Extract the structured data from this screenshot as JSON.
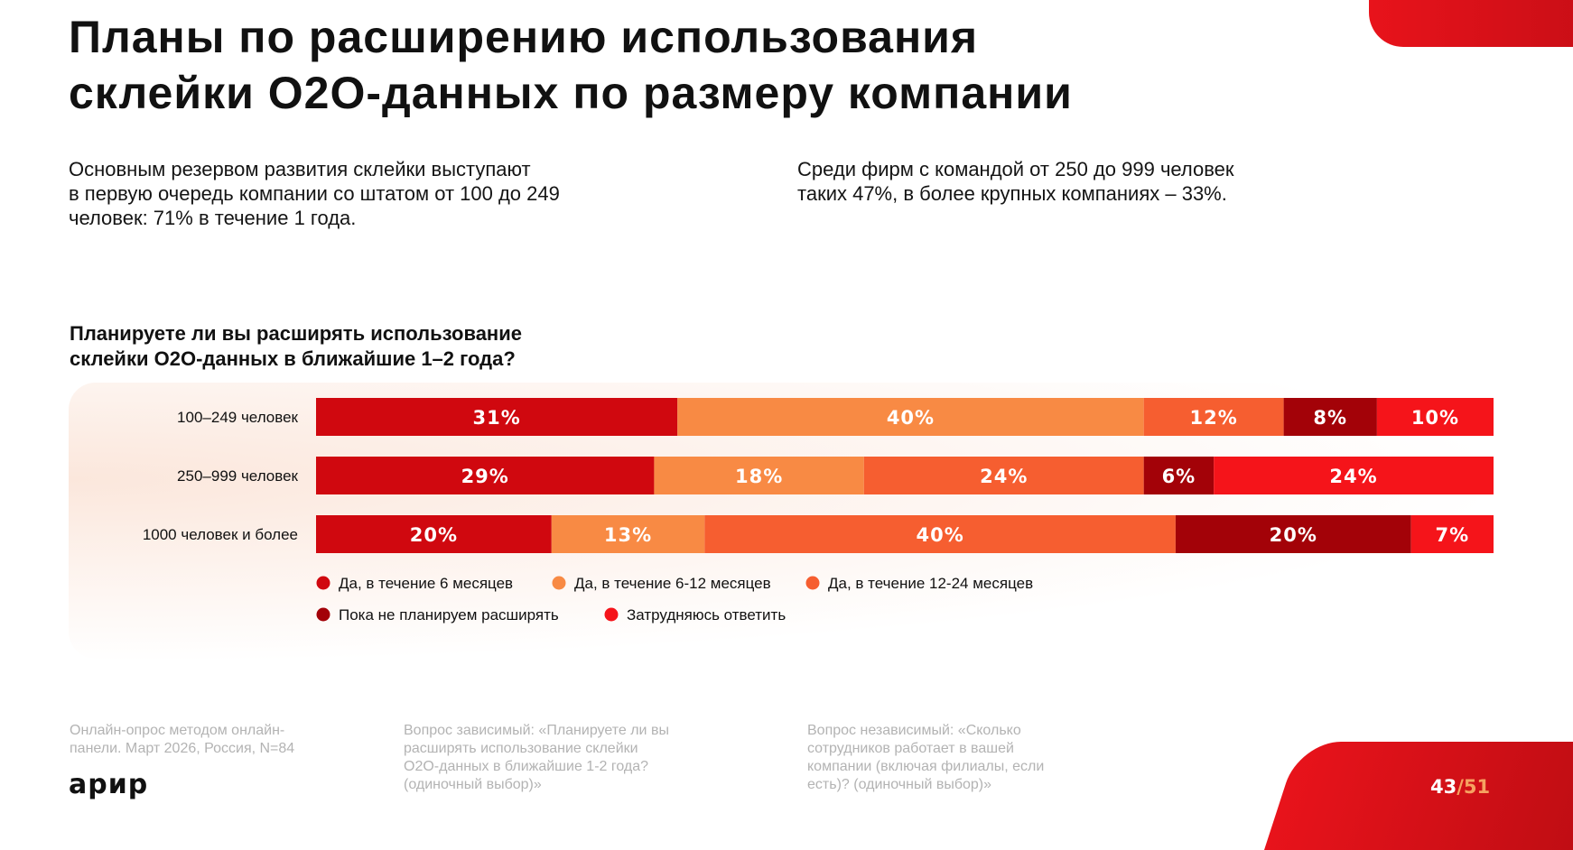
{
  "title_lines": [
    "Планы по расширению использования",
    "склейки O2O-данных по размеру компании"
  ],
  "lead_left_lines": [
    "Основным резервом развития склейки выступают",
    "в первую очередь компании со штатом от 100 до 249",
    "человек: 71% в течение 1 года."
  ],
  "lead_right_lines": [
    "Среди фирм с командой от 250 до 999 человек",
    "таких 47%, в более крупных компаниях – 33%."
  ],
  "colors": {
    "accent": "#e8131b",
    "dark_red": "#c20d15",
    "soft_bg": "#fdf2ec",
    "page_total": "#f6a261"
  },
  "chart_data": {
    "type": "bar",
    "orientation": "horizontal",
    "stacked": true,
    "normalized_percent": true,
    "title_lines": [
      "Планируете ли вы расширять использование",
      "склейки O2O-данных в ближайшие 1–2 года?"
    ],
    "categories": [
      "100–249 человек",
      "250–999 человек",
      "1000 человек и более"
    ],
    "series": [
      {
        "name": "Да, в течение 6 месяцев",
        "color": "#d0080f",
        "values": [
          31,
          29,
          20
        ]
      },
      {
        "name": "Да, в течение 6-12 месяцев",
        "color": "#f88a44",
        "values": [
          40,
          18,
          13
        ]
      },
      {
        "name": "Да, в течение 12-24 месяцев",
        "color": "#f65e30",
        "values": [
          12,
          24,
          40
        ]
      },
      {
        "name": "Пока не планируем расширять",
        "color": "#a30208",
        "values": [
          8,
          6,
          20
        ]
      },
      {
        "name": "Затрудняюсь ответить",
        "color": "#f5141a",
        "values": [
          10,
          24,
          7
        ]
      }
    ],
    "value_suffix": "%",
    "legend_position": "bottom-left"
  },
  "footnotes": {
    "method_lines": [
      "Онлайн-опрос методом онлайн-",
      "панели. Март 2026, Россия, N=84"
    ],
    "dependent_lines": [
      "Вопрос зависимый: «Планируете ли вы",
      "расширять использование склейки",
      "O2O-данных в ближайшие 1-2 года?",
      "(одиночный выбор)»"
    ],
    "independent_lines": [
      "Вопрос независимый: «Сколько",
      "сотрудников работает в вашей",
      "компании (включая филиалы, если",
      "есть)? (одиночный выбор)»"
    ]
  },
  "brand": {
    "logo_text": "арир"
  },
  "pagination": {
    "current": "43",
    "total": "/51"
  }
}
